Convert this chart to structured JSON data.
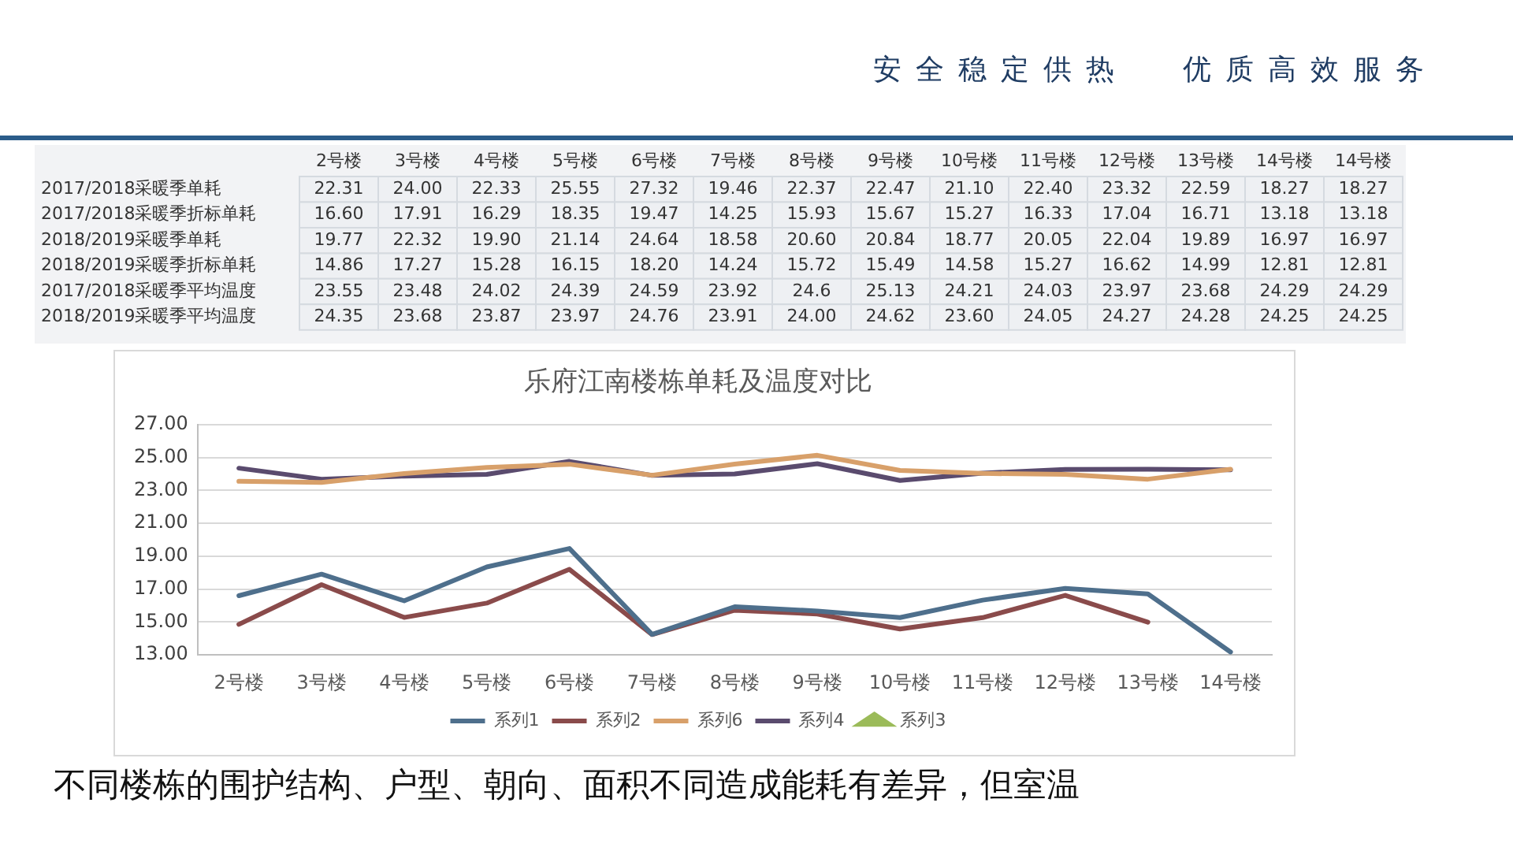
{
  "chart_data": [
    {
      "type": "heatmap",
      "categories": [
        "2号楼",
        "3号楼",
        "4号楼",
        "5号楼",
        "6号楼",
        "7号楼",
        "8号楼",
        "9号楼",
        "10号楼",
        "11号楼",
        "12号楼",
        "13号楼",
        "14号楼",
        "14号楼"
      ],
      "y_categories": [
        "2017/2018采暖季单耗",
        "2017/2018采暖季折标单耗",
        "2018/2019采暖季单耗",
        "2018/2019采暖季折标单耗",
        "2017/2018采暖季平均温度",
        "2018/2019采暖季平均温度"
      ],
      "cells": [
        [
          22.31,
          24.0,
          22.33,
          25.55,
          27.32,
          19.46,
          22.37,
          22.47,
          21.1,
          22.4,
          23.32,
          22.59,
          18.27,
          18.27
        ],
        [
          16.6,
          17.91,
          16.29,
          18.35,
          19.47,
          14.25,
          15.93,
          15.67,
          15.27,
          16.33,
          17.04,
          16.71,
          13.18,
          13.18
        ],
        [
          19.77,
          22.32,
          19.9,
          21.14,
          24.64,
          18.58,
          20.6,
          20.84,
          18.77,
          20.05,
          22.04,
          19.89,
          16.97,
          16.97
        ],
        [
          14.86,
          17.27,
          15.28,
          16.15,
          18.2,
          14.24,
          15.72,
          15.49,
          14.58,
          15.27,
          16.62,
          14.99,
          12.81,
          12.81
        ],
        [
          23.55,
          23.48,
          24.02,
          24.39,
          24.59,
          23.92,
          24.6,
          25.13,
          24.21,
          24.03,
          23.97,
          23.68,
          24.29,
          24.29
        ],
        [
          24.35,
          23.68,
          23.87,
          23.97,
          24.76,
          23.91,
          24.0,
          24.62,
          23.6,
          24.05,
          24.27,
          24.28,
          24.25,
          24.25
        ]
      ],
      "cell_labels": [
        [
          "22.31",
          "24.00",
          "22.33",
          "25.55",
          "27.32",
          "19.46",
          "22.37",
          "22.47",
          "21.10",
          "22.40",
          "23.32",
          "22.59",
          "18.27",
          "18.27"
        ],
        [
          "16.60",
          "17.91",
          "16.29",
          "18.35",
          "19.47",
          "14.25",
          "15.93",
          "15.67",
          "15.27",
          "16.33",
          "17.04",
          "16.71",
          "13.18",
          "13.18"
        ],
        [
          "19.77",
          "22.32",
          "19.90",
          "21.14",
          "24.64",
          "18.58",
          "20.60",
          "20.84",
          "18.77",
          "20.05",
          "22.04",
          "19.89",
          "16.97",
          "16.97"
        ],
        [
          "14.86",
          "17.27",
          "15.28",
          "16.15",
          "18.20",
          "14.24",
          "15.72",
          "15.49",
          "14.58",
          "15.27",
          "16.62",
          "14.99",
          "12.81",
          "12.81"
        ],
        [
          "23.55",
          "23.48",
          "24.02",
          "24.39",
          "24.59",
          "23.92",
          "24.6",
          "25.13",
          "24.21",
          "24.03",
          "23.97",
          "23.68",
          "24.29",
          "24.29"
        ],
        [
          "24.35",
          "23.68",
          "23.87",
          "23.97",
          "24.76",
          "23.91",
          "24.00",
          "24.62",
          "23.60",
          "24.05",
          "24.27",
          "24.28",
          "24.25",
          "24.25"
        ]
      ],
      "annotations": [
        "安全稳定供热 优质高效服务"
      ]
    },
    {
      "type": "line",
      "title": "乐府江南楼栋单耗及温度对比",
      "categories": [
        "2号楼",
        "3号楼",
        "4号楼",
        "5号楼",
        "6号楼",
        "7号楼",
        "8号楼",
        "9号楼",
        "10号楼",
        "11号楼",
        "12号楼",
        "13号楼",
        "14号楼"
      ],
      "series": [
        {
          "name": "系列1",
          "color": "#4e6f8c",
          "values": [
            16.6,
            17.91,
            16.29,
            18.35,
            19.47,
            14.25,
            15.93,
            15.67,
            15.27,
            16.33,
            17.04,
            16.71,
            13.18
          ]
        },
        {
          "name": "系列2",
          "color": "#8a4b4b",
          "values": [
            14.86,
            17.27,
            15.28,
            16.15,
            18.2,
            14.24,
            15.72,
            15.49,
            14.58,
            15.27,
            16.62,
            14.99,
            null
          ]
        },
        {
          "name": "系列6",
          "color": "#d8a06a",
          "values": [
            23.55,
            23.48,
            24.02,
            24.39,
            24.59,
            23.92,
            24.6,
            25.13,
            24.21,
            24.03,
            23.97,
            23.68,
            24.29
          ]
        },
        {
          "name": "系列4",
          "color": "#5a4b6e",
          "values": [
            24.35,
            23.68,
            23.87,
            23.97,
            24.76,
            23.91,
            24.0,
            24.62,
            23.6,
            24.05,
            24.27,
            24.28,
            24.25
          ]
        },
        {
          "name": "系列3",
          "color": "#9bbb59",
          "marker": "triangle",
          "values": [
            null,
            null,
            null,
            null,
            null,
            null,
            null,
            null,
            null,
            null,
            null,
            null,
            null
          ]
        }
      ],
      "ylim": [
        13,
        27
      ],
      "yticks": [
        {
          "value": 13,
          "label": "13.00"
        },
        {
          "value": 15,
          "label": "15.00"
        },
        {
          "value": 17,
          "label": "17.00"
        },
        {
          "value": 19,
          "label": "19.00"
        },
        {
          "value": 21,
          "label": "21.00"
        },
        {
          "value": 23,
          "label": "23.00"
        },
        {
          "value": 25,
          "label": "25.00"
        },
        {
          "value": 27,
          "label": "27.00"
        }
      ],
      "grid": "y",
      "legend": "bottom",
      "annotations": [
        "不同楼栋的围护结构、户型、朝向、面积不同造成能耗有差异，但室温"
      ]
    }
  ]
}
